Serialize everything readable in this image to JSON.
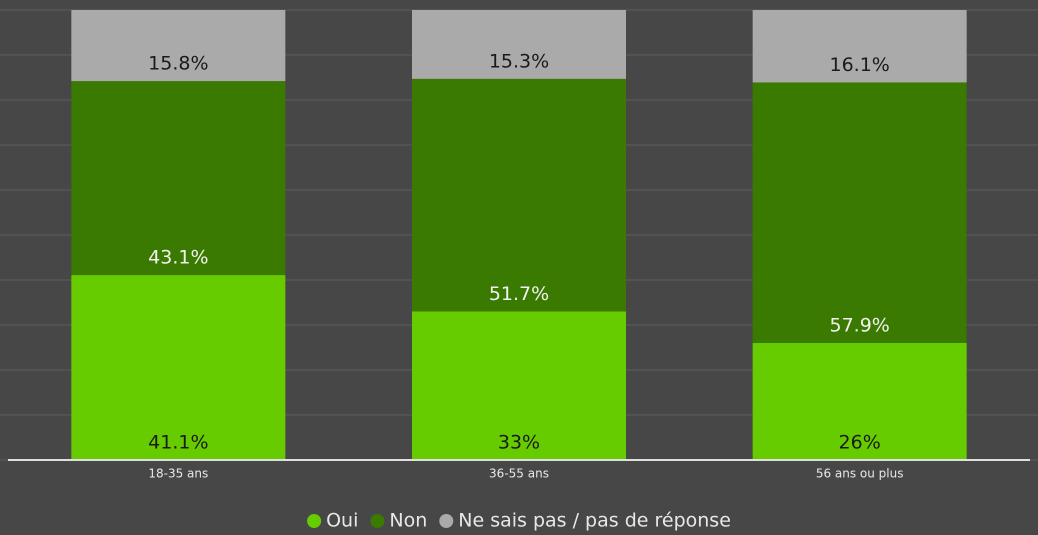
{
  "chart_data": {
    "type": "stacked_bar",
    "categories": [
      "18-35 ans",
      "36-55 ans",
      "56 ans ou plus"
    ],
    "series": [
      {
        "name": "Oui",
        "color": "#66cc00",
        "values": [
          41.1,
          33,
          26
        ],
        "value_labels": [
          "41.1%",
          "33%",
          "26%"
        ]
      },
      {
        "name": "Non",
        "color": "#3a7a00",
        "values": [
          43.1,
          51.7,
          57.9
        ],
        "value_labels": [
          "43.1%",
          "51.7%",
          "57.9%"
        ]
      },
      {
        "name": "Ne sais pas / pas de réponse",
        "color": "#aaaaaa",
        "values": [
          15.8,
          15.3,
          16.1
        ],
        "value_labels": [
          "15.8%",
          "15.3%",
          "16.1%"
        ]
      }
    ],
    "ylim": [
      0,
      100
    ],
    "yticks": [
      0,
      10,
      20,
      30,
      40,
      50,
      60,
      70,
      80,
      90,
      100
    ],
    "grid": true,
    "legend": "bottom"
  }
}
